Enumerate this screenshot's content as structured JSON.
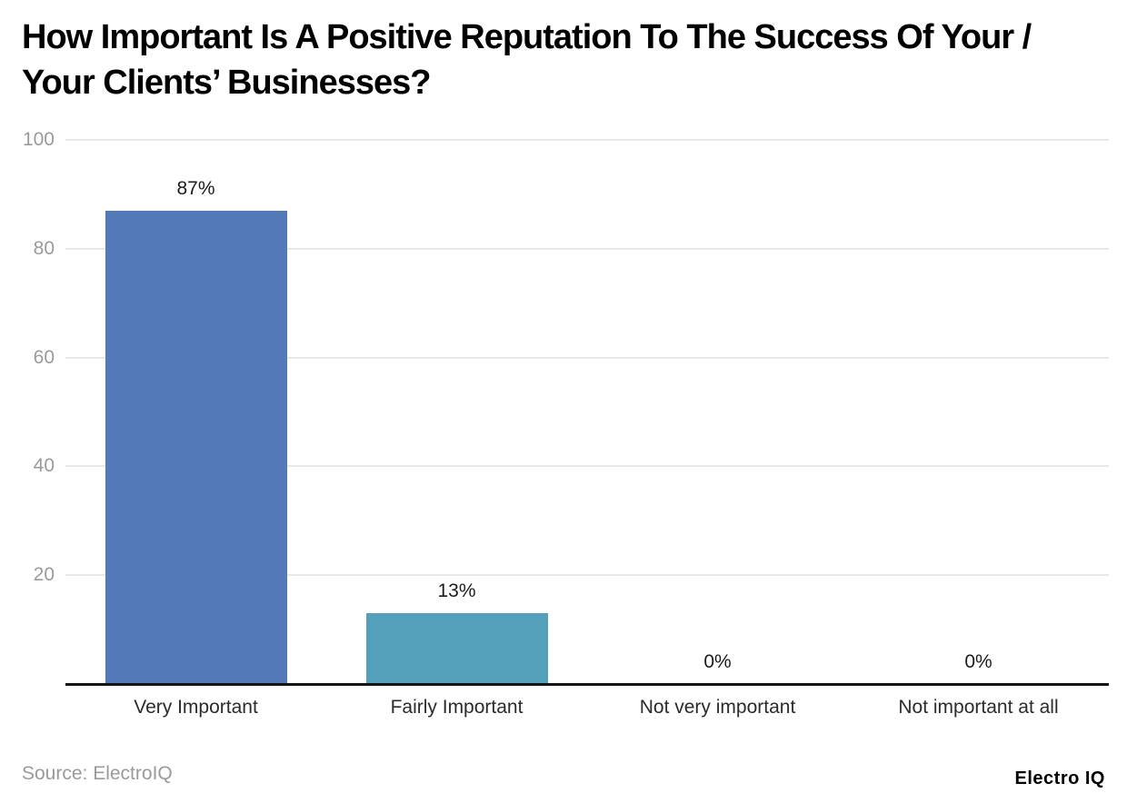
{
  "title": "How Important Is A Positive Reputation To The Success Of Your / Your Clients’ Businesses?",
  "source": "Source: ElectroIQ",
  "brand": "Electro IQ",
  "chart_data": {
    "type": "bar",
    "title": "How Important Is A Positive Reputation To The Success Of Your / Your Clients’ Businesses?",
    "categories": [
      "Very Important",
      "Fairly Important",
      "Not very important",
      "Not important at all"
    ],
    "values": [
      87,
      13,
      0,
      0
    ],
    "value_labels": [
      "87%",
      "13%",
      "0%",
      "0%"
    ],
    "bar_colors": [
      "#5479b8",
      "#54a0ba",
      "#54a0ba",
      "#54a0ba"
    ],
    "y_ticks": [
      20,
      40,
      60,
      80,
      100
    ],
    "ylim": [
      0,
      100
    ],
    "grid": true,
    "legend": false,
    "xlabel": "",
    "ylabel": ""
  },
  "colors": {
    "background": "#ffffff",
    "grid_line": "#e8e8e8",
    "axis_line": "#141414",
    "tick_label": "#9a9a9a",
    "category_label": "#2b2b2b",
    "value_label": "#1c1c1c",
    "title": "#000000"
  }
}
